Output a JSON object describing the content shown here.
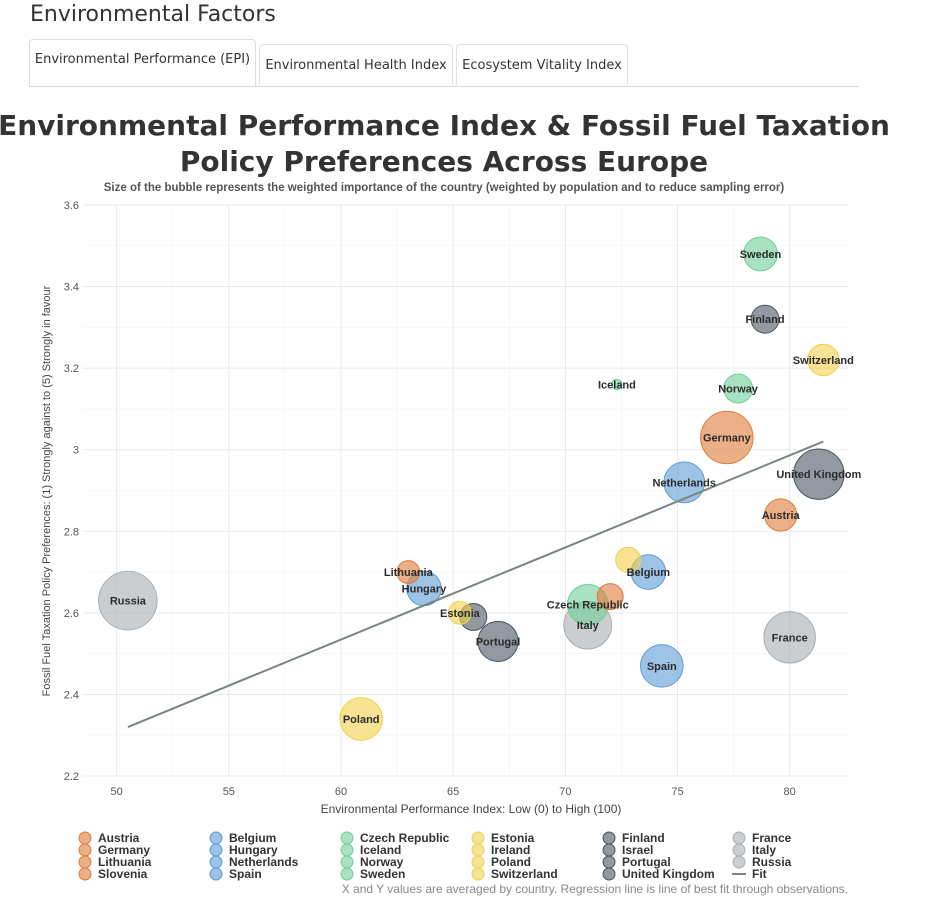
{
  "page": {
    "title": "Environmental Factors"
  },
  "tabs": [
    {
      "label": "Environmental Performance (EPI)",
      "active": true
    },
    {
      "label": "Environmental Health Index",
      "active": false
    },
    {
      "label": "Ecosystem Vitality Index",
      "active": false
    }
  ],
  "colors": {
    "orange": "#E07B39",
    "blue": "#5B9BD5",
    "green": "#6FCF97",
    "yellow": "#F2D04B",
    "dark": "#4A5560",
    "gray": "#A9AEB2",
    "fit": "#7A8580"
  },
  "chart_data": {
    "type": "scatter",
    "title_line1": "Environmental Performance Index & Fossil Fuel Taxation",
    "title_line2": "Policy Preferences Across Europe",
    "subtitle": "Size of the bubble represents the weighted importance of the country (weighted by population and to reduce sampling error)",
    "xlabel": "Environmental Performance Index: Low (0) to High (100)",
    "ylabel": "Fossil Fuel Taxation Policy Preferences: (1) Strongly against to (5) Strongly in favour",
    "xlim": [
      48.5,
      82.6
    ],
    "ylim": [
      2.2,
      3.6
    ],
    "x_ticks": [
      50,
      55,
      60,
      65,
      70,
      75,
      80
    ],
    "y_ticks": [
      2.2,
      2.4,
      2.6,
      2.8,
      3.0,
      3.2,
      3.4,
      3.6
    ],
    "y_tick_labels": [
      "2.2",
      "2.4",
      "2.6",
      "2.8",
      "3",
      "3.2",
      "3.4",
      "3.6"
    ],
    "grid": true,
    "legend_placement": "bottom",
    "points": [
      {
        "country": "Sweden",
        "x": 78.7,
        "y": 3.48,
        "size": 0.22,
        "group": "green",
        "label": "Sweden"
      },
      {
        "country": "Finland",
        "x": 78.9,
        "y": 3.32,
        "size": 0.15,
        "group": "dark",
        "label": "Finland"
      },
      {
        "country": "Switzerland",
        "x": 81.5,
        "y": 3.22,
        "size": 0.19,
        "group": "yellow",
        "label": "Switzerland"
      },
      {
        "country": "Iceland",
        "x": 72.3,
        "y": 3.16,
        "size": 0.02,
        "group": "green",
        "label": "Iceland"
      },
      {
        "country": "Norway",
        "x": 77.7,
        "y": 3.15,
        "size": 0.16,
        "group": "green",
        "label": "Norway"
      },
      {
        "country": "Germany",
        "x": 77.2,
        "y": 3.03,
        "size": 0.53,
        "group": "orange",
        "label": "Germany"
      },
      {
        "country": "United Kingdom",
        "x": 81.3,
        "y": 2.94,
        "size": 0.49,
        "group": "dark",
        "label": "United Kingdom"
      },
      {
        "country": "Netherlands",
        "x": 75.3,
        "y": 2.92,
        "size": 0.32,
        "group": "blue",
        "label": "Netherlands"
      },
      {
        "country": "Austria",
        "x": 79.6,
        "y": 2.84,
        "size": 0.2,
        "group": "orange",
        "label": "Austria"
      },
      {
        "country": "Belgium",
        "x": 73.7,
        "y": 2.7,
        "size": 0.23,
        "group": "blue",
        "label": "Belgium"
      },
      {
        "country": "Ireland",
        "x": 72.8,
        "y": 2.73,
        "size": 0.12,
        "group": "yellow",
        "label": ""
      },
      {
        "country": "Lithuania",
        "x": 63.0,
        "y": 2.7,
        "size": 0.1,
        "group": "orange",
        "label": "Lithuania"
      },
      {
        "country": "Hungary",
        "x": 63.7,
        "y": 2.66,
        "size": 0.23,
        "group": "blue",
        "label": "Hungary"
      },
      {
        "country": "Slovenia",
        "x": 72.0,
        "y": 2.64,
        "size": 0.13,
        "group": "orange",
        "label": ""
      },
      {
        "country": "Czech Republic",
        "x": 71.0,
        "y": 2.62,
        "size": 0.32,
        "group": "green",
        "label": "Czech Republic"
      },
      {
        "country": "Estonia",
        "x": 65.3,
        "y": 2.6,
        "size": 0.1,
        "group": "yellow",
        "label": "Estonia"
      },
      {
        "country": "Israel",
        "x": 65.9,
        "y": 2.59,
        "size": 0.14,
        "group": "dark",
        "label": ""
      },
      {
        "country": "Italy",
        "x": 71.0,
        "y": 2.57,
        "size": 0.44,
        "group": "gray",
        "label": "Italy"
      },
      {
        "country": "Russia",
        "x": 50.5,
        "y": 2.63,
        "size": 0.66,
        "group": "gray",
        "label": "Russia"
      },
      {
        "country": "France",
        "x": 80.0,
        "y": 2.54,
        "size": 0.51,
        "group": "gray",
        "label": "France"
      },
      {
        "country": "Portugal",
        "x": 67.0,
        "y": 2.53,
        "size": 0.31,
        "group": "dark",
        "label": "Portugal"
      },
      {
        "country": "Spain",
        "x": 74.3,
        "y": 2.47,
        "size": 0.35,
        "group": "blue",
        "label": "Spain"
      },
      {
        "country": "Poland",
        "x": 60.9,
        "y": 2.34,
        "size": 0.35,
        "group": "yellow",
        "label": "Poland"
      }
    ],
    "fit_line": {
      "x": [
        50.5,
        81.5
      ],
      "y": [
        2.32,
        3.02
      ]
    },
    "legend": [
      {
        "group": "orange",
        "items": [
          "Austria",
          "Germany",
          "Lithuania",
          "Slovenia"
        ]
      },
      {
        "group": "blue",
        "items": [
          "Belgium",
          "Hungary",
          "Netherlands",
          "Spain"
        ]
      },
      {
        "group": "green",
        "items": [
          "Czech Republic",
          "Iceland",
          "Norway",
          "Sweden"
        ]
      },
      {
        "group": "yellow",
        "items": [
          "Estonia",
          "Ireland",
          "Poland",
          "Switzerland"
        ]
      },
      {
        "group": "dark",
        "items": [
          "Finland",
          "Israel",
          "Portugal",
          "United Kingdom"
        ]
      },
      {
        "group": "gray",
        "items": [
          "France",
          "Italy",
          "Russia"
        ]
      }
    ],
    "fit_legend_label": "Fit",
    "caption": "X and Y values are averaged by country. Regression line is line of best fit through observations."
  }
}
